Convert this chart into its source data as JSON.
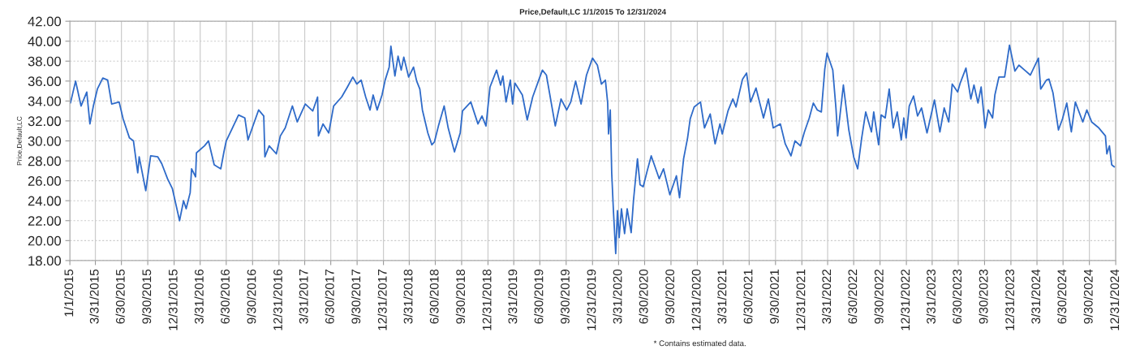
{
  "chart_data": {
    "type": "line",
    "title": "Price,Default,LC 1/1/2015 To 12/31/2024",
    "ylabel": "Price,Default,LC",
    "annotations": [
      "* Contains estimated data."
    ],
    "xlim": [
      "2015-01-01",
      "2024-12-31"
    ],
    "xticks": [
      {
        "value": "2015-01-01",
        "label": "1/1/2015"
      },
      {
        "value": "2015-03-31",
        "label": "3/31/2015"
      },
      {
        "value": "2015-06-30",
        "label": "6/30/2015"
      },
      {
        "value": "2015-09-30",
        "label": "9/30/2015"
      },
      {
        "value": "2015-12-31",
        "label": "12/31/2015"
      },
      {
        "value": "2016-03-31",
        "label": "3/31/2016"
      },
      {
        "value": "2016-06-30",
        "label": "6/30/2016"
      },
      {
        "value": "2016-09-30",
        "label": "9/30/2016"
      },
      {
        "value": "2016-12-31",
        "label": "12/31/2016"
      },
      {
        "value": "2017-03-31",
        "label": "3/31/2017"
      },
      {
        "value": "2017-06-30",
        "label": "6/30/2017"
      },
      {
        "value": "2017-09-30",
        "label": "9/30/2017"
      },
      {
        "value": "2017-12-31",
        "label": "12/31/2017"
      },
      {
        "value": "2018-03-31",
        "label": "3/31/2018"
      },
      {
        "value": "2018-06-30",
        "label": "6/30/2018"
      },
      {
        "value": "2018-09-30",
        "label": "9/30/2018"
      },
      {
        "value": "2018-12-31",
        "label": "12/31/2018"
      },
      {
        "value": "2019-03-31",
        "label": "3/31/2019"
      },
      {
        "value": "2019-06-30",
        "label": "6/30/2019"
      },
      {
        "value": "2019-09-30",
        "label": "9/30/2019"
      },
      {
        "value": "2019-12-31",
        "label": "12/31/2019"
      },
      {
        "value": "2020-03-31",
        "label": "3/31/2020"
      },
      {
        "value": "2020-06-30",
        "label": "6/30/2020"
      },
      {
        "value": "2020-09-30",
        "label": "9/30/2020"
      },
      {
        "value": "2020-12-31",
        "label": "12/31/2020"
      },
      {
        "value": "2021-03-31",
        "label": "3/31/2021"
      },
      {
        "value": "2021-06-30",
        "label": "6/30/2021"
      },
      {
        "value": "2021-09-30",
        "label": "9/30/2021"
      },
      {
        "value": "2021-12-31",
        "label": "12/31/2021"
      },
      {
        "value": "2022-03-31",
        "label": "3/31/2022"
      },
      {
        "value": "2022-06-30",
        "label": "6/30/2022"
      },
      {
        "value": "2022-09-30",
        "label": "9/30/2022"
      },
      {
        "value": "2022-12-31",
        "label": "12/31/2022"
      },
      {
        "value": "2023-03-31",
        "label": "3/31/2023"
      },
      {
        "value": "2023-06-30",
        "label": "6/30/2023"
      },
      {
        "value": "2023-09-30",
        "label": "9/30/2023"
      },
      {
        "value": "2023-12-31",
        "label": "12/31/2023"
      },
      {
        "value": "2024-03-31",
        "label": "3/31/2024"
      },
      {
        "value": "2024-06-30",
        "label": "6/30/2024"
      },
      {
        "value": "2024-09-30",
        "label": "9/30/2024"
      },
      {
        "value": "2024-12-31",
        "label": "12/31/2024"
      }
    ],
    "ylim": [
      18,
      42
    ],
    "yticks": [
      {
        "value": 18,
        "label": "18.00"
      },
      {
        "value": 20,
        "label": "20.00"
      },
      {
        "value": 22,
        "label": "22.00"
      },
      {
        "value": 24,
        "label": "24.00"
      },
      {
        "value": 26,
        "label": "26.00"
      },
      {
        "value": 28,
        "label": "28.00"
      },
      {
        "value": 30,
        "label": "30.00"
      },
      {
        "value": 32,
        "label": "32.00"
      },
      {
        "value": 34,
        "label": "34.00"
      },
      {
        "value": 36,
        "label": "36.00"
      },
      {
        "value": 38,
        "label": "38.00"
      },
      {
        "value": 40,
        "label": "40.00"
      },
      {
        "value": 42,
        "label": "42.00"
      }
    ],
    "grid": true,
    "marker": "none",
    "line_style": "solid",
    "series": [
      {
        "color": "#2f6bc9",
        "x": [
          "2015-01-03",
          "2015-01-21",
          "2015-02-09",
          "2015-03-01",
          "2015-03-12",
          "2015-03-24",
          "2015-04-07",
          "2015-04-26",
          "2015-05-13",
          "2015-05-27",
          "2015-06-22",
          "2015-07-06",
          "2015-07-28",
          "2015-08-11",
          "2015-08-26",
          "2015-08-31",
          "2015-09-23",
          "2015-10-10",
          "2015-11-04",
          "2015-11-18",
          "2015-12-08",
          "2015-12-25",
          "2016-01-19",
          "2016-02-02",
          "2016-02-11",
          "2016-02-25",
          "2016-03-01",
          "2016-03-15",
          "2016-03-18",
          "2016-04-15",
          "2016-04-29",
          "2016-05-19",
          "2016-06-11",
          "2016-06-22",
          "2016-06-30",
          "2016-07-20",
          "2016-08-12",
          "2016-09-03",
          "2016-09-14",
          "2016-10-21",
          "2016-11-08",
          "2016-11-12",
          "2016-11-27",
          "2016-12-22",
          "2017-01-05",
          "2017-01-22",
          "2017-02-16",
          "2017-03-05",
          "2017-04-02",
          "2017-04-28",
          "2017-05-15",
          "2017-05-18",
          "2017-06-03",
          "2017-06-23",
          "2017-07-10",
          "2017-08-07",
          "2017-08-27",
          "2017-09-15",
          "2017-09-29",
          "2017-10-14",
          "2017-10-30",
          "2017-11-14",
          "2017-11-25",
          "2017-12-09",
          "2017-12-26",
          "2018-01-06",
          "2018-01-20",
          "2018-01-26",
          "2018-02-09",
          "2018-02-20",
          "2018-03-03",
          "2018-03-12",
          "2018-03-29",
          "2018-04-15",
          "2018-04-26",
          "2018-05-07",
          "2018-05-16",
          "2018-06-04",
          "2018-06-18",
          "2018-06-27",
          "2018-07-11",
          "2018-07-31",
          "2018-08-14",
          "2018-09-05",
          "2018-09-25",
          "2018-10-03",
          "2018-11-01",
          "2018-11-26",
          "2018-12-10",
          "2018-12-24",
          "2019-01-07",
          "2019-01-30",
          "2019-02-13",
          "2019-02-21",
          "2019-03-04",
          "2019-03-19",
          "2019-03-27",
          "2019-04-04",
          "2019-04-30",
          "2019-05-17",
          "2019-06-05",
          "2019-06-25",
          "2019-07-09",
          "2019-07-23",
          "2019-08-09",
          "2019-08-23",
          "2019-09-12",
          "2019-10-02",
          "2019-10-16",
          "2019-11-02",
          "2019-11-21",
          "2019-12-10",
          "2019-12-31",
          "2020-01-17",
          "2020-01-31",
          "2020-02-14",
          "2020-02-22",
          "2020-02-25",
          "2020-03-02",
          "2020-03-07",
          "2020-03-13",
          "2020-03-21",
          "2020-03-27",
          "2020-04-02",
          "2020-04-10",
          "2020-04-21",
          "2020-04-30",
          "2020-05-14",
          "2020-05-22",
          "2020-06-05",
          "2020-06-14",
          "2020-06-25",
          "2020-07-09",
          "2020-07-23",
          "2020-08-20",
          "2020-09-04",
          "2020-09-26",
          "2020-10-19",
          "2020-10-30",
          "2020-11-13",
          "2020-11-27",
          "2020-12-06",
          "2020-12-20",
          "2021-01-11",
          "2021-01-25",
          "2021-02-14",
          "2021-03-03",
          "2021-03-20",
          "2021-03-28",
          "2021-04-17",
          "2021-05-04",
          "2021-05-15",
          "2021-06-07",
          "2021-06-21",
          "2021-07-05",
          "2021-07-24",
          "2021-08-19",
          "2021-09-05",
          "2021-09-22",
          "2021-10-17",
          "2021-11-03",
          "2021-11-23",
          "2021-12-07",
          "2021-12-26",
          "2022-01-09",
          "2022-01-26",
          "2022-02-09",
          "2022-02-23",
          "2022-03-09",
          "2022-03-21",
          "2022-03-29",
          "2022-04-18",
          "2022-04-29",
          "2022-05-05",
          "2022-05-25",
          "2022-06-13",
          "2022-06-30",
          "2022-07-14",
          "2022-07-28",
          "2022-08-11",
          "2022-08-31",
          "2022-09-08",
          "2022-09-25",
          "2022-10-04",
          "2022-10-18",
          "2022-11-01",
          "2022-11-15",
          "2022-11-29",
          "2022-12-13",
          "2022-12-22",
          "2022-12-30",
          "2023-01-10",
          "2023-01-25",
          "2023-02-08",
          "2023-02-22",
          "2023-03-13",
          "2023-03-25",
          "2023-04-08",
          "2023-04-27",
          "2023-05-12",
          "2023-05-28",
          "2023-06-09",
          "2023-06-28",
          "2023-07-07",
          "2023-07-27",
          "2023-08-13",
          "2023-08-24",
          "2023-09-07",
          "2023-09-18",
          "2023-10-02",
          "2023-10-13",
          "2023-10-28",
          "2023-11-05",
          "2023-11-19",
          "2023-12-09",
          "2023-12-26",
          "2024-01-14",
          "2024-01-28",
          "2024-02-17",
          "2024-03-08",
          "2024-04-05",
          "2024-04-13",
          "2024-05-03",
          "2024-05-12",
          "2024-05-26",
          "2024-06-14",
          "2024-06-28",
          "2024-07-13",
          "2024-07-29",
          "2024-08-12",
          "2024-09-07",
          "2024-09-21",
          "2024-10-08",
          "2024-11-02",
          "2024-11-25",
          "2024-11-30",
          "2024-12-09",
          "2024-12-17",
          "2024-12-26"
        ],
        "values": [
          33.8,
          36.0,
          33.5,
          34.9,
          31.7,
          33.5,
          35.2,
          36.3,
          36.1,
          33.7,
          33.9,
          32.2,
          30.3,
          30.0,
          26.8,
          28.4,
          25.0,
          28.5,
          28.4,
          27.7,
          26.2,
          25.2,
          22.0,
          24.0,
          23.2,
          24.8,
          27.2,
          26.4,
          28.8,
          29.5,
          30.0,
          27.6,
          27.2,
          28.9,
          30.0,
          31.2,
          32.6,
          32.3,
          30.1,
          33.1,
          32.5,
          28.4,
          29.5,
          28.7,
          30.5,
          31.3,
          33.5,
          31.9,
          33.7,
          33.0,
          34.4,
          30.5,
          31.7,
          30.8,
          33.5,
          34.4,
          35.4,
          36.4,
          35.7,
          36.1,
          34.4,
          33.1,
          34.6,
          33.1,
          34.6,
          36.1,
          37.4,
          39.5,
          36.5,
          38.5,
          37.1,
          38.4,
          36.4,
          37.4,
          36.0,
          35.2,
          33.1,
          30.8,
          29.6,
          29.9,
          31.5,
          33.5,
          31.3,
          28.9,
          30.8,
          33.0,
          33.9,
          31.7,
          32.5,
          31.5,
          35.4,
          37.1,
          35.6,
          36.5,
          33.9,
          36.1,
          33.7,
          35.8,
          34.6,
          32.1,
          34.4,
          36.0,
          37.1,
          36.6,
          33.8,
          31.5,
          34.2,
          33.1,
          33.9,
          36.0,
          33.7,
          36.6,
          38.3,
          37.6,
          35.7,
          36.1,
          33.8,
          30.7,
          33.1,
          26.8,
          23.0,
          18.7,
          23.0,
          20.3,
          23.2,
          20.7,
          23.2,
          20.8,
          24.0,
          28.2,
          25.6,
          25.4,
          27.0,
          28.5,
          26.2,
          27.2,
          24.6,
          26.5,
          24.3,
          28.2,
          30.3,
          32.2,
          33.4,
          33.9,
          31.3,
          32.7,
          29.7,
          31.7,
          30.7,
          33.0,
          34.2,
          33.4,
          36.2,
          36.8,
          33.9,
          35.3,
          32.3,
          34.2,
          31.3,
          31.7,
          29.7,
          28.5,
          30.0,
          29.5,
          30.9,
          32.3,
          33.8,
          33.1,
          32.9,
          37.2,
          38.8,
          37.1,
          33.3,
          30.5,
          35.6,
          31.1,
          28.4,
          27.2,
          30.3,
          32.9,
          30.9,
          32.9,
          29.6,
          32.6,
          32.3,
          35.2,
          31.3,
          32.9,
          30.1,
          32.3,
          30.3,
          33.5,
          34.5,
          32.5,
          33.3,
          30.8,
          32.3,
          34.1,
          30.9,
          33.3,
          31.9,
          35.7,
          34.9,
          35.8,
          37.3,
          34.2,
          35.6,
          33.8,
          35.4,
          31.3,
          33.1,
          32.3,
          34.6,
          36.4,
          36.4,
          39.6,
          37.0,
          37.6,
          37.1,
          36.6,
          38.3,
          35.2,
          36.1,
          36.2,
          34.8,
          31.1,
          32.2,
          33.8,
          30.9,
          33.9,
          31.9,
          33.1,
          31.9,
          31.3,
          30.5,
          28.7,
          29.5,
          27.6,
          27.4
        ]
      }
    ]
  }
}
